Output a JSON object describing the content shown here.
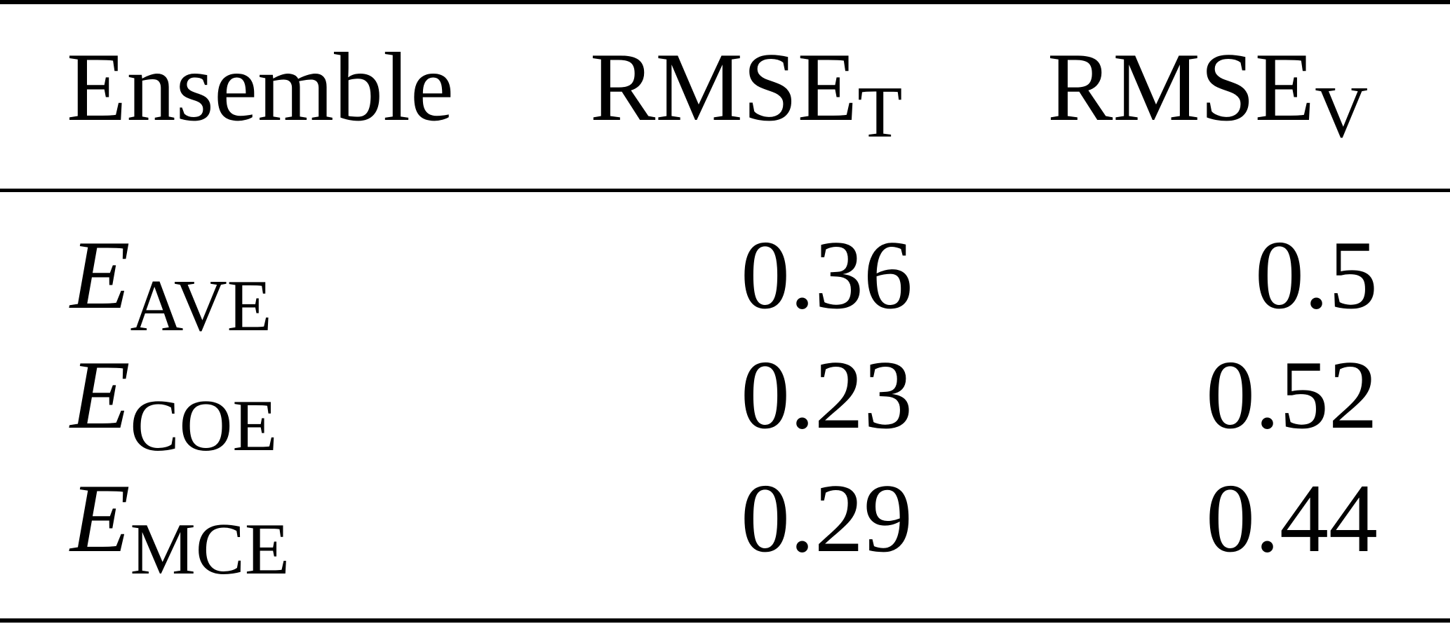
{
  "table": {
    "columns": [
      {
        "text": "Ensemble"
      },
      {
        "text": "RMSE",
        "sub": "T"
      },
      {
        "text": "RMSE",
        "sub": "V"
      }
    ],
    "rows": [
      {
        "label": "E",
        "sub": "AVE",
        "values": [
          0.36,
          0.5
        ]
      },
      {
        "label": "E",
        "sub": "COE",
        "values": [
          0.23,
          0.52
        ]
      },
      {
        "label": "E",
        "sub": "MCE",
        "values": [
          0.29,
          0.44
        ]
      }
    ]
  }
}
